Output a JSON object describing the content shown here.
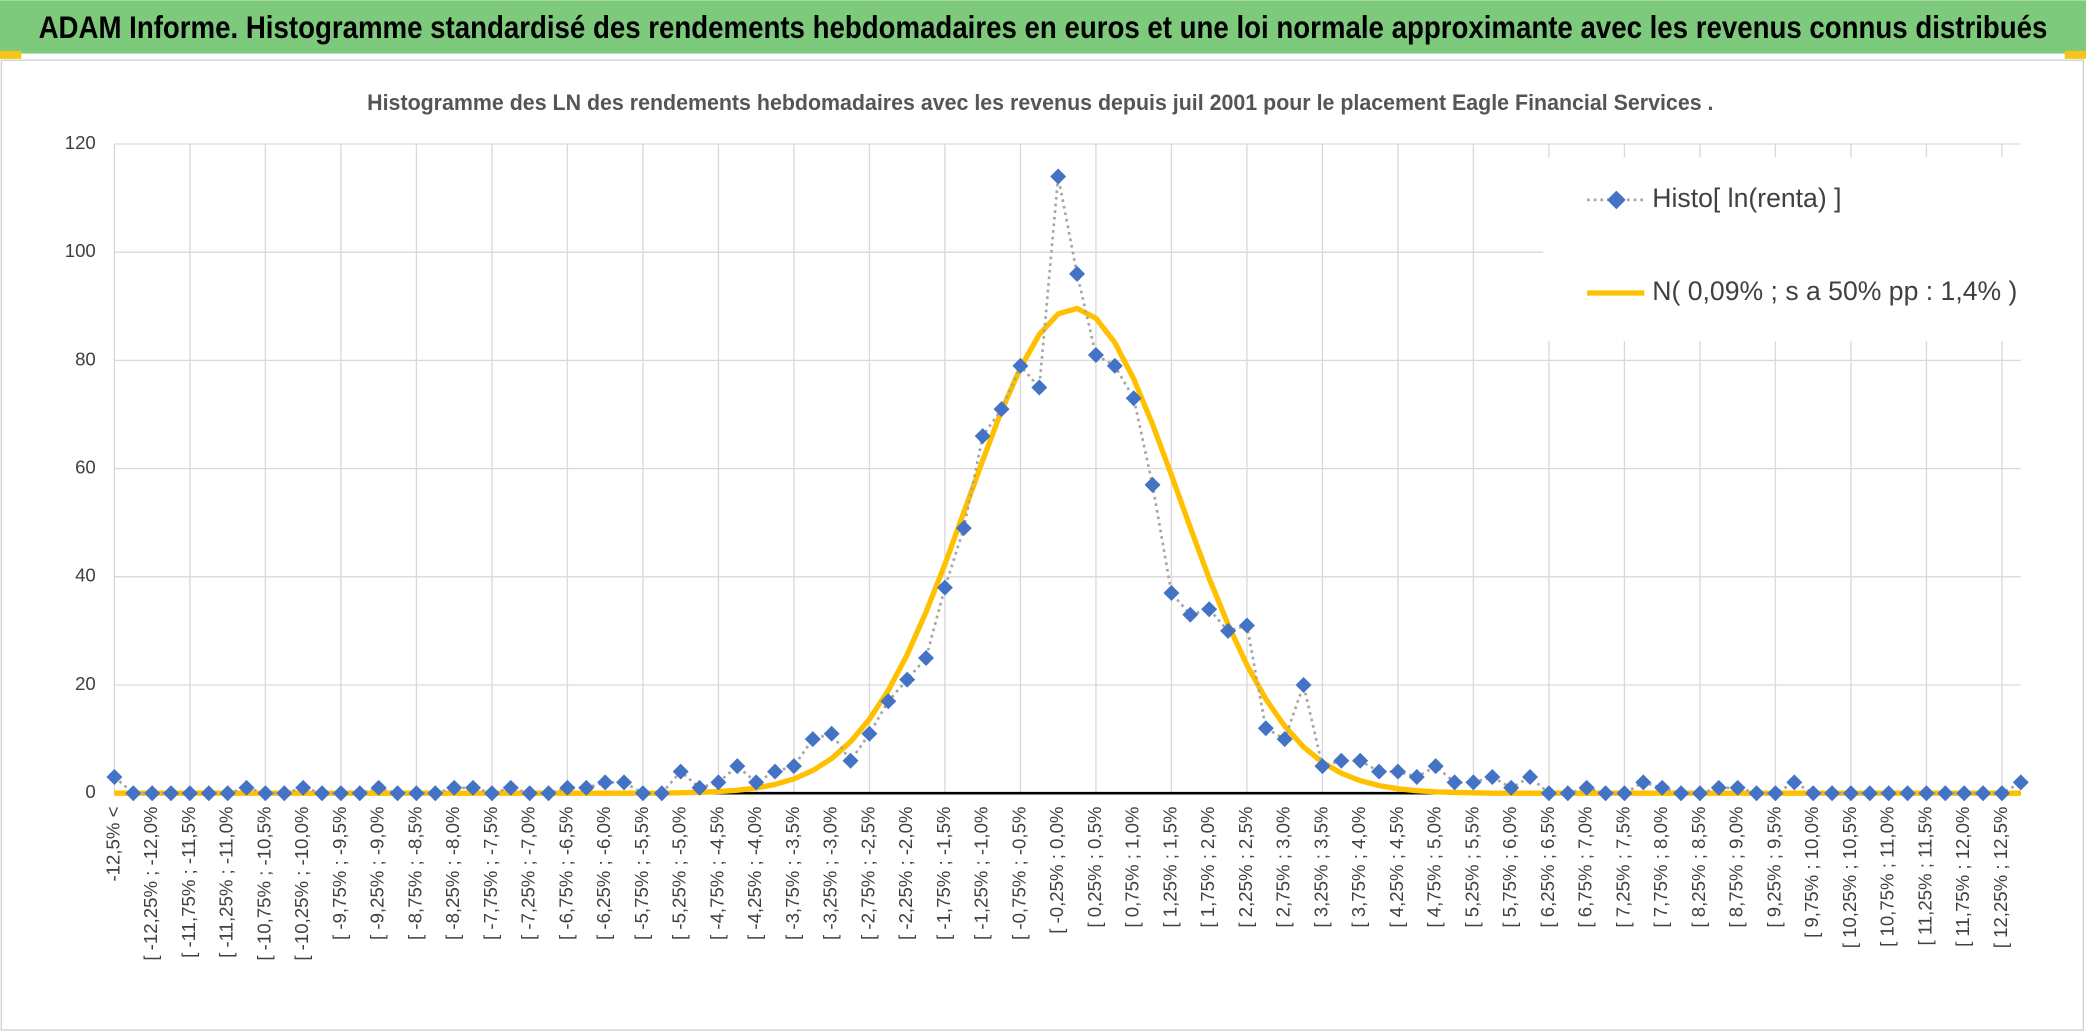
{
  "header": {
    "title": "ADAM Informe. Histogramme standardisé des rendements hebdomadaires en euros et une loi normale approximante avec les revenus connus distribués"
  },
  "chart_data": {
    "type": "line",
    "title": "Histogramme des LN des rendements hebdomadaires avec les revenus depuis juil 2001 pour le placement Eagle Financial Services .",
    "categories": [
      "-12,5% <",
      null,
      "[ -12,25% ; -12,0%",
      null,
      "[ -11,75% ; -11,5%",
      null,
      "[ -11,25% ; -11,0%",
      null,
      "[ -10,75% ; -10,5%",
      null,
      "[ -10,25% ; -10,0%",
      null,
      "[ -9,75% ; -9,5%",
      null,
      "[ -9,25% ; -9,0%",
      null,
      "[ -8,75% ; -8,5%",
      null,
      "[ -8,25% ; -8,0%",
      null,
      "[ -7,75% ; -7,5%",
      null,
      "[ -7,25% ; -7,0%",
      null,
      "[ -6,75% ; -6,5%",
      null,
      "[ -6,25% ; -6,0%",
      null,
      "[ -5,75% ; -5,5%",
      null,
      "[ -5,25% ; -5,0%",
      null,
      "[ -4,75% ; -4,5%",
      null,
      "[ -4,25% ; -4,0%",
      null,
      "[ -3,75% ; -3,5%",
      null,
      "[ -3,25% ; -3,0%",
      null,
      "[ -2,75% ; -2,5%",
      null,
      "[ -2,25% ; -2,0%",
      null,
      "[ -1,75% ; -1,5%",
      null,
      "[ -1,25% ; -1,0%",
      null,
      "[ -0,75% ; -0,5%",
      null,
      "[ -0,25% ; 0,0%",
      null,
      "[ 0,25% ; 0,5%",
      null,
      "[ 0,75% ; 1,0%",
      null,
      "[ 1,25% ; 1,5%",
      null,
      "[ 1,75% ; 2,0%",
      null,
      "[ 2,25% ; 2,5%",
      null,
      "[ 2,75% ; 3,0%",
      null,
      "[ 3,25% ; 3,5%",
      null,
      "[ 3,75% ; 4,0%",
      null,
      "[ 4,25% ; 4,5%",
      null,
      "[ 4,75% ; 5,0%",
      null,
      "[ 5,25% ; 5,5%",
      null,
      "[ 5,75% ; 6,0%",
      null,
      "[ 6,25% ; 6,5%",
      null,
      "[ 6,75% ; 7,0%",
      null,
      "[ 7,25% ; 7,5%",
      null,
      "[ 7,75% ; 8,0%",
      null,
      "[ 8,25% ; 8,5%",
      null,
      "[ 8,75% ; 9,0%",
      null,
      "[ 9,25% ; 9,5%",
      null,
      "[ 9,75% ; 10,0%",
      null,
      "[ 10,25% ; 10,5%",
      null,
      "[ 10,75% ; 11,0%",
      null,
      "[ 11,25% ; 11,5%",
      null,
      "[ 11,75% ; 12,0%",
      null,
      "[ 12,25% ; 12,5%",
      null
    ],
    "series": [
      {
        "name": "Histo[ ln(renta) ]",
        "color": "#4472c4",
        "line_color": "#a5a5a5",
        "line_style": "dotted",
        "marker": "diamond",
        "values": [
          3,
          0,
          0,
          0,
          0,
          0,
          0,
          1,
          0,
          0,
          1,
          0,
          0,
          0,
          1,
          0,
          0,
          0,
          1,
          1,
          0,
          1,
          0,
          0,
          1,
          1,
          2,
          2,
          0,
          0,
          4,
          1,
          2,
          5,
          2,
          4,
          5,
          10,
          11,
          6,
          11,
          17,
          21,
          25,
          38,
          49,
          66,
          71,
          79,
          75,
          114,
          96,
          81,
          79,
          73,
          57,
          37,
          33,
          34,
          30,
          31,
          12,
          10,
          20,
          5,
          6,
          6,
          4,
          4,
          3,
          5,
          2,
          2,
          3,
          1,
          3,
          0,
          0,
          1,
          0,
          0,
          2,
          1,
          0,
          0,
          1,
          1,
          0,
          0,
          2,
          0,
          0,
          0,
          0,
          0,
          0,
          0,
          0,
          0,
          0,
          0,
          2
        ]
      },
      {
        "name": "N( 0,09% ; s a 50% pp : 1,4% )",
        "color": "#ffc000",
        "line_style": "solid",
        "marker": "none",
        "values": [
          0,
          0,
          0,
          0,
          0,
          0,
          0,
          0,
          0,
          0,
          0,
          0,
          0,
          0,
          0,
          0,
          0,
          0,
          0,
          0,
          0,
          0,
          0,
          0,
          0,
          0,
          0,
          0,
          0,
          0,
          0.09,
          0.17,
          0.31,
          0.55,
          0.97,
          1.62,
          2.65,
          4.19,
          6.41,
          9.51,
          13.67,
          19.0,
          25.6,
          33.5,
          42.3,
          51.9,
          61.5,
          70.7,
          78.6,
          84.8,
          88.6,
          89.6,
          87.8,
          83.3,
          76.6,
          68.2,
          58.8,
          49.1,
          39.7,
          31.2,
          23.7,
          17.4,
          12.4,
          8.55,
          5.71,
          3.7,
          2.32,
          1.41,
          0.83,
          0.47,
          0.26,
          0.14,
          0.07,
          0,
          0,
          0,
          0,
          0,
          0,
          0,
          0,
          0,
          0,
          0,
          0,
          0,
          0,
          0,
          0,
          0,
          0,
          0,
          0,
          0,
          0,
          0,
          0,
          0,
          0,
          0,
          0,
          0
        ]
      }
    ],
    "ylim": [
      0,
      120
    ],
    "yticks": [
      0,
      20,
      40,
      60,
      80,
      100,
      120
    ],
    "grid": true,
    "legend": "top-right"
  }
}
